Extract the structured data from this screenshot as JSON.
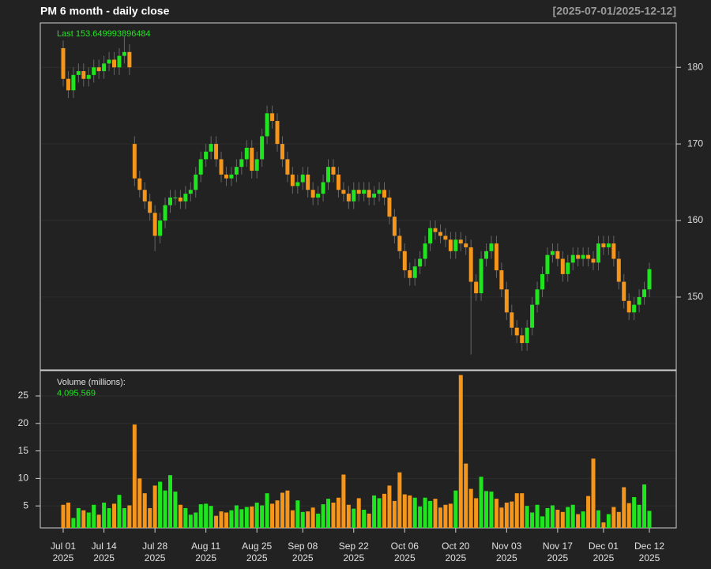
{
  "chart_data": [
    {
      "type": "candlestick",
      "title": "PM  6 month - daily close",
      "subtitle": "[2025-07-01/2025-12-12]",
      "annotation": "Last 153.649993896484",
      "x": [
        "2025-07-01",
        "2025-07-02",
        "2025-07-03",
        "2025-07-07",
        "2025-07-08",
        "2025-07-09",
        "2025-07-10",
        "2025-07-11",
        "2025-07-14",
        "2025-07-15",
        "2025-07-16",
        "2025-07-17",
        "2025-07-18",
        "2025-07-21",
        "2025-07-22",
        "2025-07-23",
        "2025-07-24",
        "2025-07-25",
        "2025-07-28",
        "2025-07-29",
        "2025-07-30",
        "2025-07-31",
        "2025-08-01",
        "2025-08-04",
        "2025-08-05",
        "2025-08-06",
        "2025-08-07",
        "2025-08-08",
        "2025-08-11",
        "2025-08-12",
        "2025-08-13",
        "2025-08-14",
        "2025-08-15",
        "2025-08-18",
        "2025-08-19",
        "2025-08-20",
        "2025-08-21",
        "2025-08-22",
        "2025-08-25",
        "2025-08-26",
        "2025-08-27",
        "2025-08-28",
        "2025-08-29",
        "2025-09-02",
        "2025-09-03",
        "2025-09-04",
        "2025-09-05",
        "2025-09-08",
        "2025-09-09",
        "2025-09-10",
        "2025-09-11",
        "2025-09-12",
        "2025-09-15",
        "2025-09-16",
        "2025-09-17",
        "2025-09-18",
        "2025-09-19",
        "2025-09-22",
        "2025-09-23",
        "2025-09-24",
        "2025-09-25",
        "2025-09-26",
        "2025-09-29",
        "2025-09-30",
        "2025-10-01",
        "2025-10-02",
        "2025-10-03",
        "2025-10-06",
        "2025-10-07",
        "2025-10-08",
        "2025-10-09",
        "2025-10-10",
        "2025-10-13",
        "2025-10-14",
        "2025-10-15",
        "2025-10-16",
        "2025-10-17",
        "2025-10-20",
        "2025-10-21",
        "2025-10-22",
        "2025-10-23",
        "2025-10-24",
        "2025-10-27",
        "2025-10-28",
        "2025-10-29",
        "2025-10-30",
        "2025-10-31",
        "2025-11-03",
        "2025-11-04",
        "2025-11-05",
        "2025-11-06",
        "2025-11-07",
        "2025-11-10",
        "2025-11-11",
        "2025-11-12",
        "2025-11-13",
        "2025-11-14",
        "2025-11-17",
        "2025-11-18",
        "2025-11-19",
        "2025-11-20",
        "2025-11-21",
        "2025-11-24",
        "2025-11-25",
        "2025-11-26",
        "2025-11-28",
        "2025-12-01",
        "2025-12-02",
        "2025-12-03",
        "2025-12-04",
        "2025-12-05",
        "2025-12-08",
        "2025-12-09",
        "2025-12-10",
        "2025-12-11",
        "2025-12-12"
      ],
      "open": [
        182.5,
        178.5,
        177,
        179,
        179.5,
        178.5,
        179,
        180,
        179.5,
        180.5,
        181,
        180,
        181.5,
        182,
        170,
        165.5,
        164,
        162.5,
        161,
        158,
        160,
        162,
        163,
        163,
        162.5,
        163.5,
        164,
        166,
        168,
        169,
        170,
        168,
        166,
        165.5,
        166,
        167,
        168,
        169.5,
        166.5,
        168,
        171,
        174,
        173,
        170,
        168,
        166,
        164.5,
        165,
        166,
        164,
        163,
        163.5,
        165,
        167,
        166,
        164,
        163.5,
        162.5,
        164,
        163.5,
        164,
        163,
        163.5,
        164,
        163,
        160.5,
        158,
        156,
        153.5,
        152.5,
        154,
        155,
        157,
        159,
        158.5,
        158,
        157.5,
        156,
        157.5,
        157,
        156.5,
        152,
        150.5,
        155,
        156,
        157,
        153.5,
        151,
        148,
        146,
        145,
        144,
        146,
        149,
        151,
        153,
        155.5,
        156,
        155,
        153,
        154.5,
        155.5,
        155,
        155.5,
        155,
        154.5,
        157,
        156.5,
        157,
        155,
        152,
        149.5,
        148,
        149,
        150,
        151
      ],
      "high": [
        183.5,
        179.5,
        180,
        180.5,
        180.5,
        180,
        181,
        181,
        181.5,
        182,
        182,
        182.5,
        184,
        183,
        171,
        166.5,
        165,
        163.5,
        162,
        161,
        163,
        164,
        164,
        164,
        164.5,
        165,
        167,
        169,
        170,
        171,
        171,
        169,
        167,
        167,
        168,
        169,
        170.5,
        170.5,
        169,
        172,
        175,
        175,
        174,
        171,
        169,
        167,
        166,
        167,
        167,
        165,
        164.5,
        166,
        168,
        168,
        167,
        165,
        164.5,
        165,
        165,
        165,
        165,
        164.5,
        165,
        165,
        164,
        161.5,
        159,
        157,
        154.5,
        155,
        156,
        158,
        160,
        160,
        159.5,
        159,
        158.5,
        158.5,
        158.5,
        158,
        157.5,
        153,
        156,
        157,
        158,
        158,
        154.5,
        152,
        149,
        147,
        146,
        147,
        150,
        152,
        154,
        156.5,
        157,
        157,
        156,
        155.5,
        156.5,
        156.5,
        156.5,
        156.5,
        156,
        158,
        158,
        158,
        158,
        156,
        153,
        150.5,
        150,
        151,
        152,
        154.5
      ],
      "low": [
        177.5,
        176,
        176,
        178,
        177.5,
        177.5,
        178,
        178.5,
        178.5,
        179.5,
        179,
        179,
        180.5,
        179,
        164.5,
        163,
        161.5,
        160,
        156,
        157,
        159,
        161,
        162,
        161.5,
        161.5,
        162.5,
        163,
        165,
        167,
        168,
        167,
        165,
        164.5,
        164.5,
        165,
        166,
        167,
        165.5,
        165.5,
        167,
        170,
        172,
        169,
        167,
        165,
        163.5,
        163.5,
        164,
        163,
        162,
        162,
        162.5,
        164,
        165,
        163,
        162.5,
        161.5,
        161.5,
        162.5,
        162.5,
        162,
        162,
        162.5,
        162,
        159.5,
        157,
        155,
        152.5,
        151.5,
        151.5,
        153,
        154,
        156,
        157.5,
        157,
        156.5,
        155,
        155,
        156,
        155.5,
        142.5,
        149.5,
        149.5,
        154,
        155,
        152.5,
        150,
        147,
        145,
        144,
        143,
        143,
        145,
        148,
        150,
        152,
        154.5,
        154,
        152,
        152,
        153.5,
        154,
        154,
        154,
        153.5,
        153.5,
        155.5,
        155.5,
        154,
        151,
        148.5,
        147,
        147,
        148,
        149,
        150
      ],
      "close": [
        178.5,
        177,
        179,
        179.5,
        178.5,
        179,
        180,
        179.5,
        180.5,
        181,
        180,
        181.5,
        182,
        180,
        165.5,
        164,
        162.5,
        161,
        158,
        160,
        162,
        163,
        163,
        162.5,
        163.5,
        164,
        166,
        168,
        169,
        170,
        168,
        166,
        165.5,
        166,
        167,
        168,
        169.5,
        166.5,
        168,
        171,
        174,
        173,
        170,
        168,
        166,
        164.5,
        165,
        166,
        164,
        163,
        163.5,
        165,
        167,
        166,
        164,
        163.5,
        162.5,
        164,
        163.5,
        164,
        163,
        163.5,
        164,
        163,
        160.5,
        158,
        156,
        153.5,
        152.5,
        154,
        155,
        157,
        159,
        158.5,
        158,
        157.5,
        156,
        157.5,
        157,
        156.5,
        152,
        150.5,
        155,
        156,
        157,
        153.5,
        151,
        148,
        146,
        145,
        144,
        146,
        149,
        151,
        153,
        155.5,
        156,
        155,
        153,
        154.5,
        155.5,
        155,
        155.5,
        155,
        154.5,
        157,
        156.5,
        157,
        155,
        152,
        149.5,
        148,
        149,
        150,
        151,
        153.649993896484
      ],
      "up_color": "#1fe51f",
      "down_color": "#f4961c",
      "ylim": [
        140.5,
        185.8
      ],
      "yticks": [
        150,
        160,
        170,
        180
      ],
      "grid": true
    },
    {
      "type": "bar",
      "title": "Volume (millions):",
      "annotation": "4,095,569",
      "values": [
        5.2,
        5.6,
        2.8,
        4.6,
        4.2,
        3.8,
        5.2,
        3.4,
        5.6,
        4.6,
        5.4,
        7.0,
        4.6,
        5.1,
        19.8,
        10,
        7.3,
        4.6,
        8.7,
        9.4,
        7.8,
        10.6,
        7.6,
        5.2,
        4.6,
        3.4,
        3.8,
        5.3,
        5.4,
        5.0,
        3.2,
        4.0,
        3.8,
        4.2,
        5.1,
        4.4,
        4.8,
        4.9,
        5.6,
        5.1,
        7.3,
        5.4,
        6.0,
        7.4,
        7.8,
        4.2,
        6.0,
        3.9,
        4.0,
        4.7,
        3.6,
        5.3,
        6.3,
        5.6,
        6.5,
        10.7,
        5.2,
        4.5,
        6.4,
        4.3,
        3.6,
        6.9,
        6.4,
        7.2,
        8.7,
        5.9,
        11.1,
        7.1,
        6.9,
        6.5,
        4.9,
        6.5,
        5.9,
        6.3,
        4.7,
        5.2,
        5.4,
        7.8,
        28.8,
        12.7,
        8.1,
        6.4,
        10.3,
        7.7,
        7.6,
        6.3,
        4.7,
        5.6,
        5.8,
        7.3,
        7.3,
        5.0,
        3.8,
        5.2,
        3.1,
        4.6,
        5.1,
        4.3,
        3.9,
        4.8,
        5.2,
        3.5,
        4.0,
        6.8,
        13.6,
        4.2,
        2.0,
        3.5,
        4.8,
        3.9,
        8.4,
        5.5,
        6.6,
        5.2,
        8.9,
        4.095569
      ],
      "ylim": [
        1,
        29.6
      ],
      "yticks": [
        5,
        10,
        15,
        20,
        25
      ],
      "grid": true,
      "xticks": [
        {
          "value": "2025-07-01",
          "label": [
            "Jul 01",
            "2025"
          ]
        },
        {
          "value": "2025-07-14",
          "label": [
            "Jul 14",
            "2025"
          ]
        },
        {
          "value": "2025-07-28",
          "label": [
            "Jul 28",
            "2025"
          ]
        },
        {
          "value": "2025-08-11",
          "label": [
            "Aug 11",
            "2025"
          ]
        },
        {
          "value": "2025-08-25",
          "label": [
            "Aug 25",
            "2025"
          ]
        },
        {
          "value": "2025-09-08",
          "label": [
            "Sep 08",
            "2025"
          ]
        },
        {
          "value": "2025-09-22",
          "label": [
            "Sep 22",
            "2025"
          ]
        },
        {
          "value": "2025-10-06",
          "label": [
            "Oct 06",
            "2025"
          ]
        },
        {
          "value": "2025-10-20",
          "label": [
            "Oct 20",
            "2025"
          ]
        },
        {
          "value": "2025-11-03",
          "label": [
            "Nov 03",
            "2025"
          ]
        },
        {
          "value": "2025-11-17",
          "label": [
            "Nov 17",
            "2025"
          ]
        },
        {
          "value": "2025-12-01",
          "label": [
            "Dec 01",
            "2025"
          ]
        },
        {
          "value": "2025-12-12",
          "label": [
            "Dec 12",
            "2025"
          ]
        }
      ]
    }
  ]
}
